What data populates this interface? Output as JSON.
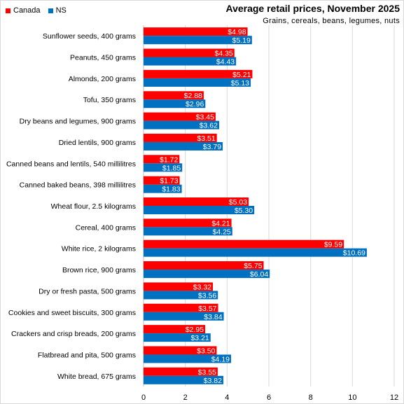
{
  "chart_data": {
    "type": "bar",
    "orientation": "horizontal",
    "title": "Average retail prices, November 2025",
    "subtitle": "Grains, cereals, beans, legumes, nuts",
    "categories": [
      "Sunflower seeds, 400 grams",
      "Peanuts, 450 grams",
      "Almonds, 200 grams",
      "Tofu, 350 grams",
      "Dry beans and legumes, 900 grams",
      "Dried lentils, 900 grams",
      "Canned beans and lentils, 540 millilitres",
      "Canned baked beans, 398 millilitres",
      "Wheat flour, 2.5 kilograms",
      "Cereal, 400 grams",
      "White rice, 2 kilograms",
      "Brown rice, 900 grams",
      "Dry or fresh pasta, 500 grams",
      "Cookies and sweet biscuits, 300 grams",
      "Crackers and crisp breads, 200 grams",
      "Flatbread and pita, 500 grams",
      "White bread, 675 grams"
    ],
    "series": [
      {
        "name": "Canada",
        "color": "#ff0000",
        "values": [
          4.98,
          4.35,
          5.21,
          2.88,
          3.45,
          3.51,
          1.72,
          1.73,
          5.03,
          4.21,
          9.59,
          5.75,
          3.32,
          3.57,
          2.95,
          3.5,
          3.55
        ],
        "labels": [
          "$4.98",
          "$4.35",
          "$5.21",
          "$2.88",
          "$3.45",
          "$3.51",
          "$1.72",
          "$1.73",
          "$5.03",
          "$4.21",
          "$9.59",
          "$5.75",
          "$3.32",
          "$3.57",
          "$2.95",
          "$3.50",
          "$3.55"
        ]
      },
      {
        "name": "NS",
        "color": "#0070c0",
        "values": [
          5.19,
          4.43,
          5.13,
          2.96,
          3.62,
          3.79,
          1.85,
          1.83,
          5.3,
          4.25,
          10.69,
          6.04,
          3.56,
          3.84,
          3.21,
          4.19,
          3.82
        ],
        "labels": [
          "$5.19",
          "$4.43",
          "$5.13",
          "$2.96",
          "$3.62",
          "$3.79",
          "$1.85",
          "$1.83",
          "$5.30",
          "$4.25",
          "$10.69",
          "$6.04",
          "$3.56",
          "$3.84",
          "$3.21",
          "$4.19",
          "$3.82"
        ]
      }
    ],
    "xlim": [
      0,
      12
    ],
    "xticks": [
      "0",
      "2",
      "4",
      "6",
      "8",
      "10",
      "12"
    ],
    "grid": "vertical",
    "legend": "top-left"
  }
}
